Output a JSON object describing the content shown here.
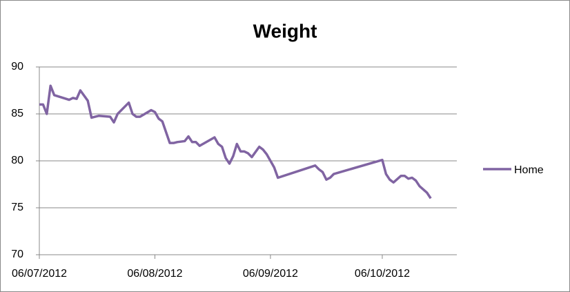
{
  "chart_data": {
    "type": "line",
    "title": "Weight",
    "x": [
      "06/07/2012",
      "07/07/2012",
      "08/07/2012",
      "09/07/2012",
      "10/07/2012",
      "14/07/2012",
      "15/07/2012",
      "16/07/2012",
      "17/07/2012",
      "19/07/2012",
      "20/07/2012",
      "22/07/2012",
      "25/07/2012",
      "26/07/2012",
      "27/07/2012",
      "30/07/2012",
      "31/07/2012",
      "01/08/2012",
      "02/08/2012",
      "05/08/2012",
      "06/08/2012",
      "07/08/2012",
      "08/08/2012",
      "10/08/2012",
      "11/08/2012",
      "12/08/2012",
      "14/08/2012",
      "15/08/2012",
      "16/08/2012",
      "17/08/2012",
      "18/08/2012",
      "22/08/2012",
      "23/08/2012",
      "24/08/2012",
      "25/08/2012",
      "26/08/2012",
      "27/08/2012",
      "28/08/2012",
      "29/08/2012",
      "30/08/2012",
      "31/08/2012",
      "01/09/2012",
      "03/09/2012",
      "04/09/2012",
      "05/09/2012",
      "07/09/2012",
      "08/09/2012",
      "18/09/2012",
      "19/09/2012",
      "20/09/2012",
      "21/09/2012",
      "22/09/2012",
      "23/09/2012",
      "06/10/2012",
      "07/10/2012",
      "08/10/2012",
      "09/10/2012",
      "11/10/2012",
      "12/10/2012",
      "13/10/2012",
      "14/10/2012",
      "15/10/2012",
      "16/10/2012",
      "18/10/2012",
      "19/10/2012"
    ],
    "series": [
      {
        "name": "Home",
        "color": "#8064a2",
        "values": [
          86,
          86,
          85,
          88,
          87,
          86.5,
          86.7,
          86.6,
          87.5,
          86.4,
          84.6,
          84.8,
          84.7,
          84.1,
          85,
          86.2,
          85,
          84.7,
          84.7,
          85.4,
          85.2,
          84.5,
          84.2,
          81.9,
          81.9,
          82,
          82.1,
          82.6,
          82,
          82,
          81.6,
          82.5,
          81.8,
          81.5,
          80.3,
          79.7,
          80.5,
          81.8,
          81,
          81,
          80.8,
          80.4,
          81.5,
          81.2,
          80.7,
          79.3,
          78.2,
          79.5,
          79.1,
          78.8,
          78,
          78.2,
          78.6,
          80.1,
          78.6,
          78,
          77.7,
          78.4,
          78.4,
          78.1,
          78.2,
          77.9,
          77.3,
          76.6,
          76
        ]
      }
    ],
    "xlim": [
      "06/07/2012",
      "26/10/2012"
    ],
    "xticks": [
      "06/07/2012",
      "06/08/2012",
      "06/09/2012",
      "06/10/2012"
    ],
    "ylim": [
      70,
      90
    ],
    "yticks": [
      70,
      75,
      80,
      85,
      90
    ],
    "grid": true,
    "legend": "right"
  }
}
